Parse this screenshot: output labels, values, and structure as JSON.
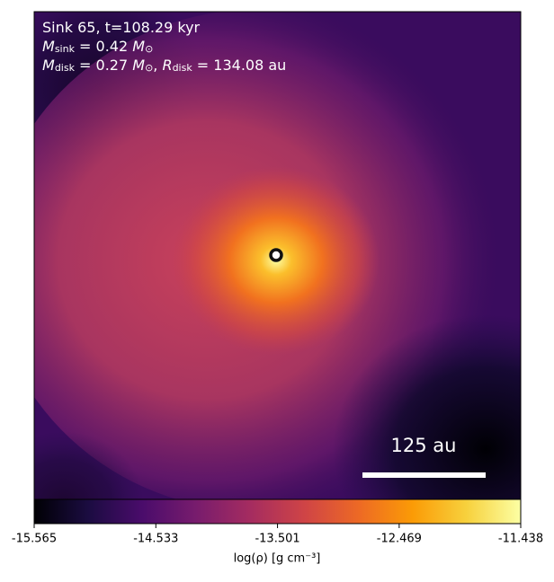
{
  "chart_data": {
    "type": "density-map",
    "annotations": [
      [
        {
          "text": "Sink 65, t=108.29 kyr"
        }
      ],
      [
        {
          "text": "M",
          "italic": true
        },
        {
          "text": "sink",
          "sub": true
        },
        {
          "text": " = 0.42 "
        },
        {
          "text": "M",
          "italic": true
        },
        {
          "text": "⊙",
          "sub": true
        }
      ],
      [
        {
          "text": "M",
          "italic": true
        },
        {
          "text": "disk",
          "sub": true
        },
        {
          "text": " = 0.27 "
        },
        {
          "text": "M",
          "italic": true
        },
        {
          "text": "⊙",
          "sub": true
        },
        {
          "text": ", "
        },
        {
          "text": "R",
          "italic": true
        },
        {
          "text": "disk",
          "sub": true
        },
        {
          "text": " = 134.08 au"
        }
      ]
    ],
    "scale_bar_label": "125 au",
    "colorbar": {
      "label": "log(ρ) [g cm⁻³]",
      "clim": [
        -15.565,
        -11.438
      ],
      "ticks": [
        -15.565,
        -14.533,
        -13.501,
        -12.469,
        -11.438
      ],
      "colormap": [
        "#000004",
        "#1b0c41",
        "#4a0c6b",
        "#781c6d",
        "#a52c60",
        "#cf4446",
        "#ed6925",
        "#fb9b06",
        "#f7d13d",
        "#fcffa4"
      ]
    }
  }
}
